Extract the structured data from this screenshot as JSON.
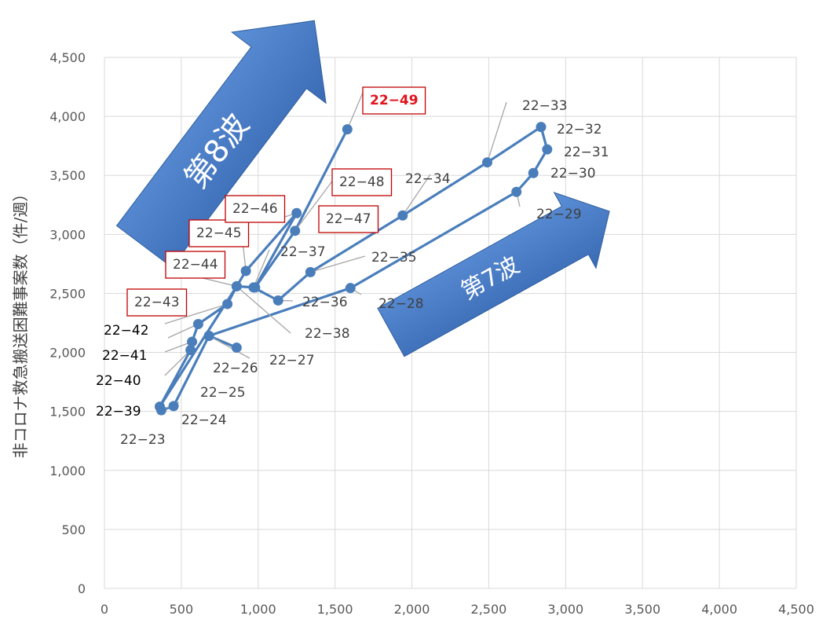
{
  "chart_data": {
    "type": "scatter",
    "ylabel": "非コロナ救急搬送困難事案数（件/週）",
    "xlabel": "",
    "xlim": [
      0,
      4500
    ],
    "ylim": [
      0,
      4500
    ],
    "grid": true,
    "x_ticks": [
      "0",
      "500",
      "1,000",
      "1,500",
      "2,000",
      "2,500",
      "3,000",
      "3,500",
      "4,000",
      "4,500"
    ],
    "y_ticks": [
      "0",
      "500",
      "1,000",
      "1,500",
      "2,000",
      "2,500",
      "3,000",
      "3,500",
      "4,000",
      "4,500"
    ],
    "series_color": "#4a7ebb",
    "highlight_color": "#e0141e",
    "points": [
      {
        "label": "22−23",
        "x": 370,
        "y": 1510
      },
      {
        "label": "22−24",
        "x": 450,
        "y": 1545
      },
      {
        "label": "22−25",
        "x": 680,
        "y": 2140
      },
      {
        "label": "22−26",
        "x": 860,
        "y": 2040
      },
      {
        "label": "22−27",
        "x": 680,
        "y": 2140
      },
      {
        "label": "22−28",
        "x": 1600,
        "y": 2545
      },
      {
        "label": "22−29",
        "x": 2680,
        "y": 3360
      },
      {
        "label": "22−30",
        "x": 2790,
        "y": 3520
      },
      {
        "label": "22−31",
        "x": 2880,
        "y": 3720
      },
      {
        "label": "22−32",
        "x": 2840,
        "y": 3910
      },
      {
        "label": "22−33",
        "x": 2490,
        "y": 3610
      },
      {
        "label": "22−34",
        "x": 1940,
        "y": 3160
      },
      {
        "label": "22−35",
        "x": 1340,
        "y": 2680
      },
      {
        "label": "22−36",
        "x": 1130,
        "y": 2440
      },
      {
        "label": "22−37",
        "x": 970,
        "y": 2550
      },
      {
        "label": "22−38",
        "x": 860,
        "y": 2560
      },
      {
        "label": "22−39",
        "x": 360,
        "y": 1540
      },
      {
        "label": "22−40",
        "x": 560,
        "y": 2020
      },
      {
        "label": "22−41",
        "x": 570,
        "y": 2090
      },
      {
        "label": "22−42",
        "x": 610,
        "y": 2240
      },
      {
        "label": "22−43",
        "x": 800,
        "y": 2410
      },
      {
        "label": "22−44",
        "x": 860,
        "y": 2560
      },
      {
        "label": "22−45",
        "x": 920,
        "y": 2690
      },
      {
        "label": "22−46",
        "x": 1250,
        "y": 3180
      },
      {
        "label": "22−47",
        "x": 980,
        "y": 2550
      },
      {
        "label": "22−48",
        "x": 1240,
        "y": 3030
      },
      {
        "label": "22−49",
        "x": 1580,
        "y": 3890
      }
    ],
    "annotations": [
      {
        "text": "第8波",
        "direction": "up-right"
      },
      {
        "text": "第7波",
        "direction": "up-right"
      }
    ]
  }
}
